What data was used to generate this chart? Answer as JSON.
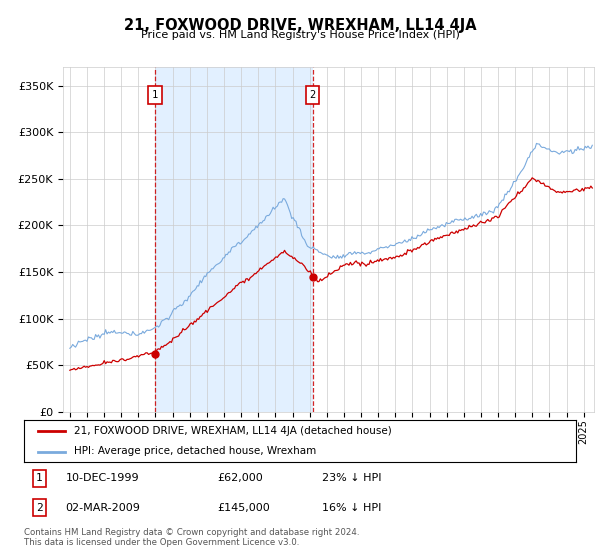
{
  "title": "21, FOXWOOD DRIVE, WREXHAM, LL14 4JA",
  "subtitle": "Price paid vs. HM Land Registry's House Price Index (HPI)",
  "ylim": [
    0,
    370000
  ],
  "hpi_color": "#7aaadd",
  "price_color": "#cc0000",
  "span_color": "#ddeeff",
  "plot_bg": "#ffffff",
  "sale1_date": "10-DEC-1999",
  "sale1_price": 62000,
  "sale1_label": "23% ↓ HPI",
  "sale2_date": "02-MAR-2009",
  "sale2_price": 145000,
  "sale2_label": "16% ↓ HPI",
  "legend_line1": "21, FOXWOOD DRIVE, WREXHAM, LL14 4JA (detached house)",
  "legend_line2": "HPI: Average price, detached house, Wrexham",
  "footnote": "Contains HM Land Registry data © Crown copyright and database right 2024.\nThis data is licensed under the Open Government Licence v3.0."
}
